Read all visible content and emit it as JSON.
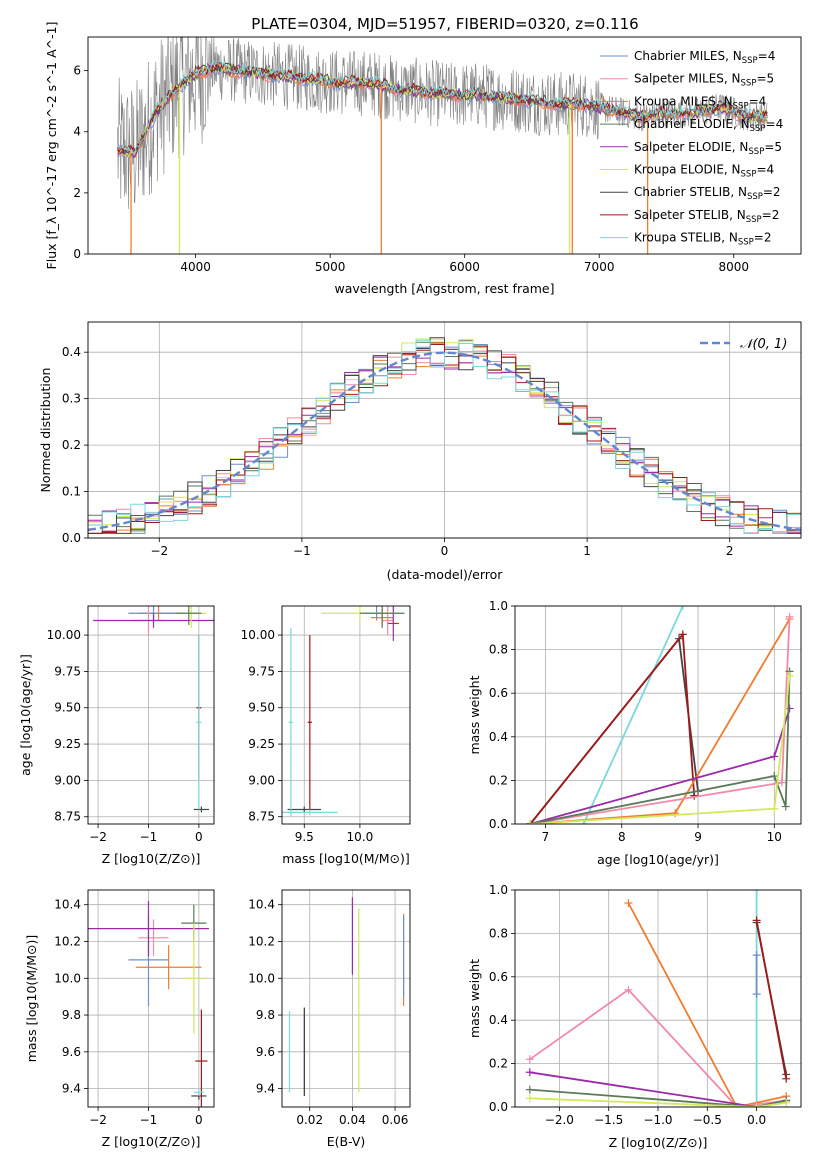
{
  "figure": {
    "title": "PLATE=0304, MJD=51957, FIBERID=0320, z=0.116"
  },
  "colors": {
    "chabrier_miles": "#6c8fd1",
    "salpeter_miles": "#f08aa8",
    "kroupa_miles": "#f07c30",
    "chabrier_elodie": "#5a7a5a",
    "salpeter_elodie": "#9a2aa8",
    "kroupa_elodie": "#d4e85a",
    "chabrier_stelib": "#444444",
    "salpeter_stelib": "#a01818",
    "kroupa_stelib": "#7ad8dc",
    "gaussian": "#6088d0",
    "grid": "#b0b0b0"
  },
  "chart_data": [
    {
      "id": "spectrum",
      "type": "line",
      "title": "PLATE=0304, MJD=51957, FIBERID=0320, z=0.116",
      "xlabel": "wavelength [Angstrom, rest frame]",
      "ylabel": "Flux [f_λ 10^-17 erg cm^-2 s^-1 A^-1]",
      "xlim": [
        3200,
        8500
      ],
      "ylim": [
        0,
        7.1
      ],
      "xticks": [
        4000,
        5000,
        6000,
        7000,
        8000
      ],
      "yticks": [
        0,
        2,
        4,
        6
      ],
      "grid": false,
      "legend_placement": "top-right",
      "data_x_range": [
        3420,
        8250
      ],
      "continuum": {
        "x": [
          3420,
          3550,
          3700,
          3850,
          4000,
          4150,
          4300,
          4500,
          4700,
          4900,
          5100,
          5300,
          5500,
          5700,
          5900,
          6100,
          6300,
          6500,
          6700,
          6900,
          7100,
          7300,
          7500,
          7700,
          7900,
          8100,
          8250
        ],
        "y": [
          3.4,
          3.3,
          4.6,
          5.4,
          5.9,
          6.1,
          6.0,
          5.9,
          5.8,
          5.7,
          5.6,
          5.6,
          5.4,
          5.3,
          5.2,
          5.2,
          5.1,
          5.0,
          4.9,
          4.9,
          4.7,
          4.5,
          4.6,
          4.6,
          4.8,
          4.5,
          4.5
        ]
      },
      "series": [
        {
          "name": "Chabrier MILES, N_SSP=4",
          "color_key": "chabrier_miles"
        },
        {
          "name": "Salpeter MILES, N_SSP=5",
          "color_key": "salpeter_miles"
        },
        {
          "name": "Kroupa MILES, N_SSP=4",
          "color_key": "kroupa_miles"
        },
        {
          "name": "Chabrier ELODIE, N_SSP=4",
          "color_key": "chabrier_elodie"
        },
        {
          "name": "Salpeter ELODIE, N_SSP=5",
          "color_key": "salpeter_elodie"
        },
        {
          "name": "Kroupa ELODIE, N_SSP=4",
          "color_key": "kroupa_elodie"
        },
        {
          "name": "Chabrier STELIB, N_SSP=2",
          "color_key": "chabrier_stelib"
        },
        {
          "name": "Salpeter STELIB, N_SSP=2",
          "color_key": "salpeter_stelib"
        },
        {
          "name": "Kroupa STELIB, N_SSP=2",
          "color_key": "kroupa_stelib"
        }
      ],
      "drops": [
        {
          "x": 3520,
          "color_key": "kroupa_miles"
        },
        {
          "x": 3880,
          "color_key": "kroupa_elodie"
        },
        {
          "x": 5380,
          "color_key": "kroupa_miles"
        },
        {
          "x": 6780,
          "color_key": "kroupa_elodie"
        },
        {
          "x": 6800,
          "color_key": "kroupa_miles"
        },
        {
          "x": 7360,
          "color_key": "kroupa_miles"
        }
      ]
    },
    {
      "id": "residuals",
      "type": "line",
      "xlabel": "(data-model)/error",
      "ylabel": "Normed distribution",
      "xlim": [
        -2.5,
        2.5
      ],
      "ylim": [
        0,
        0.465
      ],
      "xticks": [
        -2,
        -1,
        0,
        1,
        2
      ],
      "yticks": [
        0.0,
        0.1,
        0.2,
        0.3,
        0.4
      ],
      "grid": true,
      "legend_placement": "top-right",
      "gaussian_label": "𝒩(0, 1)",
      "bin_width": 0.1,
      "series_keys": [
        "chabrier_miles",
        "salpeter_miles",
        "kroupa_miles",
        "chabrier_elodie",
        "salpeter_elodie",
        "kroupa_elodie",
        "chabrier_stelib",
        "salpeter_stelib",
        "kroupa_stelib"
      ]
    },
    {
      "id": "age_vs_Z",
      "type": "scatter",
      "xlabel": "Z [log10(Z/Z⊙)]",
      "ylabel": "age  [log10(age/yr)]",
      "xlim": [
        -2.2,
        0.3
      ],
      "ylim": [
        8.7,
        10.2
      ],
      "xticks": [
        -2,
        -1,
        0
      ],
      "yticks": [
        8.75,
        9.0,
        9.25,
        9.5,
        9.75,
        10.0
      ],
      "grid": true,
      "points": [
        {
          "x": -0.8,
          "y": 10.15,
          "xerr": 0.4,
          "yerr": 0.05,
          "color_key": "kroupa_miles"
        },
        {
          "x": -0.9,
          "y": 10.15,
          "xerr": 0.5,
          "yerr": 0.06,
          "color_key": "chabrier_miles"
        },
        {
          "x": -1.0,
          "y": 10.1,
          "xerr": 0.3,
          "yerr": 0.1,
          "color_key": "salpeter_miles"
        },
        {
          "x": -0.9,
          "y": 10.1,
          "xerr": 1.2,
          "yerr": 0.05,
          "color_key": "salpeter_elodie"
        },
        {
          "x": -0.15,
          "y": 10.15,
          "xerr": 0.3,
          "yerr": 0.1,
          "color_key": "kroupa_elodie"
        },
        {
          "x": -0.2,
          "y": 10.15,
          "xerr": 0.25,
          "yerr": 0.08,
          "color_key": "chabrier_elodie"
        },
        {
          "x": 0.05,
          "y": 8.8,
          "xerr": 0.15,
          "yerr": 0.02,
          "color_key": "chabrier_stelib"
        },
        {
          "x": 0.0,
          "y": 9.5,
          "xerr": 0.05,
          "yerr": 0.5,
          "color_key": "salpeter_stelib"
        },
        {
          "x": 0.0,
          "y": 9.4,
          "xerr": 0.05,
          "yerr": 0.6,
          "color_key": "kroupa_stelib"
        }
      ]
    },
    {
      "id": "age_vs_mass",
      "type": "scatter",
      "xlabel": "mass [log10(M/M⊙)]",
      "ylabel": "",
      "xlim": [
        9.3,
        10.45
      ],
      "ylim": [
        8.7,
        10.2
      ],
      "xticks": [
        9.5,
        10.0
      ],
      "yticks": [
        8.75,
        9.0,
        9.25,
        9.5,
        9.75,
        10.0
      ],
      "grid": true,
      "points": [
        {
          "x": 10.15,
          "y": 10.15,
          "xerr": 0.1,
          "yerr": 0.05,
          "color_key": "chabrier_miles"
        },
        {
          "x": 10.25,
          "y": 10.1,
          "xerr": 0.05,
          "yerr": 0.1,
          "color_key": "salpeter_miles"
        },
        {
          "x": 10.2,
          "y": 10.12,
          "xerr": 0.1,
          "yerr": 0.06,
          "color_key": "kroupa_miles"
        },
        {
          "x": 10.3,
          "y": 10.08,
          "xerr": 0.05,
          "yerr": 0.12,
          "color_key": "salpeter_elodie"
        },
        {
          "x": 10.0,
          "y": 10.15,
          "xerr": 0.35,
          "yerr": 0.05,
          "color_key": "kroupa_elodie"
        },
        {
          "x": 10.2,
          "y": 10.15,
          "xerr": 0.2,
          "yerr": 0.1,
          "color_key": "chabrier_elodie"
        },
        {
          "x": 9.5,
          "y": 8.8,
          "xerr": 0.15,
          "yerr": 0.02,
          "color_key": "chabrier_stelib"
        },
        {
          "x": 9.55,
          "y": 9.4,
          "xerr": 0.02,
          "yerr": 0.6,
          "color_key": "salpeter_stelib"
        },
        {
          "x": 9.55,
          "y": 8.78,
          "xerr": 0.25,
          "yerr": 0.02,
          "color_key": "kroupa_stelib"
        },
        {
          "x": 9.38,
          "y": 9.4,
          "xerr": 0.02,
          "yerr": 0.65,
          "color_key": "kroupa_stelib"
        }
      ]
    },
    {
      "id": "massweight_vs_age",
      "type": "line",
      "xlabel": "age  [log10(age/yr)]",
      "ylabel": "mass weight",
      "xlim": [
        6.6,
        10.35
      ],
      "ylim": [
        0,
        1.0
      ],
      "xticks": [
        7,
        8,
        9,
        10
      ],
      "yticks": [
        0.0,
        0.2,
        0.4,
        0.6,
        0.8,
        1.0
      ],
      "grid": true,
      "series": [
        {
          "color_key": "kroupa_stelib",
          "x": [
            7.5,
            8.8
          ],
          "y": [
            0.0,
            1.0
          ]
        },
        {
          "color_key": "chabrier_stelib",
          "x": [
            6.8,
            8.75,
            9.0
          ],
          "y": [
            0.0,
            0.85,
            0.15
          ]
        },
        {
          "color_key": "salpeter_stelib",
          "x": [
            6.8,
            8.8,
            8.95
          ],
          "y": [
            0.0,
            0.87,
            0.13
          ]
        },
        {
          "color_key": "kroupa_miles",
          "x": [
            6.8,
            8.7,
            10.2
          ],
          "y": [
            0.0,
            0.05,
            0.94
          ]
        },
        {
          "color_key": "salpeter_miles",
          "x": [
            6.8,
            10.1,
            10.2
          ],
          "y": [
            0.0,
            0.19,
            0.95
          ]
        },
        {
          "color_key": "salpeter_elodie",
          "x": [
            6.8,
            10.0,
            10.2
          ],
          "y": [
            0.0,
            0.31,
            0.53
          ]
        },
        {
          "color_key": "chabrier_elodie",
          "x": [
            6.8,
            10.0,
            10.15,
            10.2
          ],
          "y": [
            0.0,
            0.22,
            0.08,
            0.7
          ]
        },
        {
          "color_key": "kroupa_elodie",
          "x": [
            6.8,
            10.0,
            10.2
          ],
          "y": [
            0.0,
            0.07,
            0.68
          ]
        }
      ]
    },
    {
      "id": "mass_vs_Z",
      "type": "scatter",
      "xlabel": "Z [log10(Z/Z⊙)]",
      "ylabel": "mass [log10(M/M⊙)]",
      "xlim": [
        -2.2,
        0.3
      ],
      "ylim": [
        9.3,
        10.48
      ],
      "xticks": [
        -2,
        -1,
        0
      ],
      "yticks": [
        9.4,
        9.6,
        9.8,
        10.0,
        10.2,
        10.4
      ],
      "grid": true,
      "points": [
        {
          "x": -1.0,
          "y": 10.1,
          "xerr": 0.4,
          "yerr": 0.25,
          "color_key": "chabrier_miles"
        },
        {
          "x": -0.9,
          "y": 10.22,
          "xerr": 0.3,
          "yerr": 0.1,
          "color_key": "salpeter_miles"
        },
        {
          "x": -0.6,
          "y": 10.06,
          "xerr": 0.65,
          "yerr": 0.12,
          "color_key": "kroupa_miles"
        },
        {
          "x": -1.0,
          "y": 10.27,
          "xerr": 1.2,
          "yerr": 0.15,
          "color_key": "salpeter_elodie"
        },
        {
          "x": -0.1,
          "y": 10.3,
          "xerr": 0.25,
          "yerr": 0.1,
          "color_key": "chabrier_elodie"
        },
        {
          "x": -0.1,
          "y": 10.0,
          "xerr": 0.2,
          "yerr": 0.3,
          "color_key": "kroupa_elodie"
        },
        {
          "x": 0.0,
          "y": 9.36,
          "xerr": 0.15,
          "yerr": 0.02,
          "color_key": "chabrier_stelib"
        },
        {
          "x": 0.05,
          "y": 9.55,
          "xerr": 0.12,
          "yerr": 0.28,
          "color_key": "salpeter_stelib"
        },
        {
          "x": 0.0,
          "y": 9.38,
          "xerr": 0.1,
          "yerr": 0.02,
          "color_key": "kroupa_stelib"
        }
      ]
    },
    {
      "id": "mass_vs_ebv",
      "type": "scatter",
      "xlabel": "E(B-V)",
      "ylabel": "",
      "xlim": [
        0.007,
        0.067
      ],
      "ylim": [
        9.3,
        10.48
      ],
      "xticks": [
        0.02,
        0.04,
        0.06
      ],
      "yticks": [
        9.4,
        9.6,
        9.8,
        10.0,
        10.2,
        10.4
      ],
      "grid": true,
      "points": [
        {
          "x": 0.0105,
          "y": 9.6,
          "yerr": 0.22,
          "color_key": "kroupa_stelib"
        },
        {
          "x": 0.0175,
          "y": 9.6,
          "yerr": 0.24,
          "color_key": "salpeter_stelib"
        },
        {
          "x": 0.0175,
          "y": 9.6,
          "yerr": 0.24,
          "color_key": "chabrier_stelib"
        },
        {
          "x": 0.04,
          "y": 10.23,
          "yerr": 0.21,
          "color_key": "salpeter_elodie"
        },
        {
          "x": 0.043,
          "y": 9.88,
          "yerr": 0.5,
          "color_key": "kroupa_elodie"
        },
        {
          "x": 0.064,
          "y": 10.1,
          "yerr": 0.25,
          "color_key": "kroupa_miles"
        },
        {
          "x": 0.064,
          "y": 10.12,
          "yerr": 0.22,
          "color_key": "chabrier_miles"
        }
      ]
    },
    {
      "id": "massweight_vs_Z",
      "type": "line",
      "xlabel": "Z [log10(Z/Z⊙)]",
      "ylabel": "mass weight",
      "xlim": [
        -2.45,
        0.45
      ],
      "ylim": [
        0,
        1.0
      ],
      "xticks": [
        -2.0,
        -1.5,
        -1.0,
        -0.5,
        0.0
      ],
      "yticks": [
        0.0,
        0.2,
        0.4,
        0.6,
        0.8,
        1.0
      ],
      "grid": true,
      "series": [
        {
          "color_key": "kroupa_stelib",
          "x": [
            0.0,
            0.0
          ],
          "y": [
            0.0,
            1.0
          ]
        },
        {
          "color_key": "chabrier_stelib",
          "x": [
            0.0,
            0.3
          ],
          "y": [
            0.85,
            0.15
          ]
        },
        {
          "color_key": "salpeter_stelib",
          "x": [
            0.0,
            0.3
          ],
          "y": [
            0.86,
            0.13
          ]
        },
        {
          "color_key": "chabrier_miles",
          "x": [
            0.0,
            0.0
          ],
          "y": [
            0.52,
            0.7
          ]
        },
        {
          "color_key": "kroupa_miles",
          "x": [
            -1.3,
            -0.2,
            0.3
          ],
          "y": [
            0.94,
            0.0,
            0.05
          ]
        },
        {
          "color_key": "salpeter_miles",
          "x": [
            -2.3,
            -1.3,
            -0.2,
            0.3
          ],
          "y": [
            0.22,
            0.54,
            0.0,
            0.03
          ]
        },
        {
          "color_key": "salpeter_elodie",
          "x": [
            -2.3,
            0.0,
            0.3
          ],
          "y": [
            0.16,
            0.0,
            0.03
          ]
        },
        {
          "color_key": "chabrier_elodie",
          "x": [
            -2.3,
            0.0,
            0.3
          ],
          "y": [
            0.08,
            0.0,
            0.03
          ]
        },
        {
          "color_key": "kroupa_elodie",
          "x": [
            -2.3,
            0.0,
            0.3
          ],
          "y": [
            0.04,
            0.0,
            0.02
          ]
        }
      ]
    }
  ]
}
